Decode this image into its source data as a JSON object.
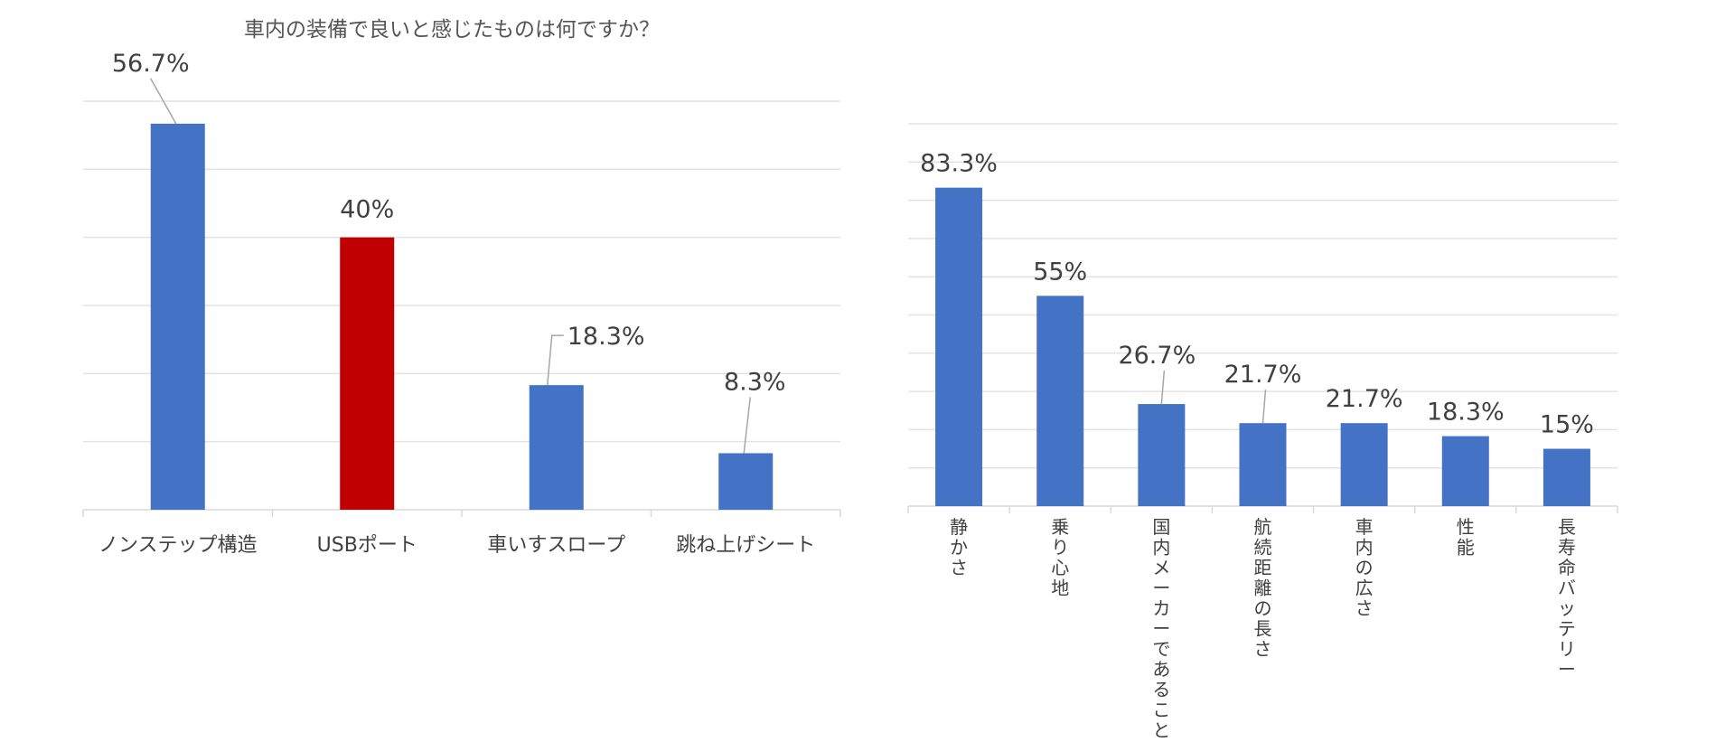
{
  "title": "車内の装備で良いと感じたものは何ですか？",
  "colors": {
    "bar_blue": "#4472c4",
    "bar_red": "#c00000",
    "grid": "#e3e3e3",
    "text": "#404040"
  },
  "chart_data": [
    {
      "type": "bar",
      "title": "車内の装備で良いと感じたものは何ですか？",
      "categories": [
        "ノンステップ構造",
        "USBポート",
        "車いすスロープ",
        "跳ね上げシート"
      ],
      "values": [
        56.7,
        40,
        18.3,
        8.3
      ],
      "value_labels": [
        "56.7%",
        "40%",
        "18.3%",
        "8.3%"
      ],
      "bar_colors": [
        "#4472c4",
        "#c00000",
        "#4472c4",
        "#4472c4"
      ],
      "ylim": [
        0,
        60
      ],
      "grid": true,
      "xlabel": "",
      "ylabel": ""
    },
    {
      "type": "bar",
      "title": "",
      "categories": [
        "静かさ",
        "乗り心地",
        "国内メーカーであること",
        "航続距離の長さ",
        "車内の広さ",
        "性能",
        "長寿命バッテリー"
      ],
      "values": [
        83.3,
        55,
        26.7,
        21.7,
        21.7,
        18.3,
        15
      ],
      "value_labels": [
        "83.3%",
        "55%",
        "26.7%",
        "21.7%",
        "21.7%",
        "18.3%",
        "15%"
      ],
      "bar_colors": [
        "#4472c4",
        "#4472c4",
        "#4472c4",
        "#4472c4",
        "#4472c4",
        "#4472c4",
        "#4472c4"
      ],
      "ylim": [
        0,
        100
      ],
      "grid": true,
      "xlabel": "",
      "ylabel": ""
    }
  ]
}
